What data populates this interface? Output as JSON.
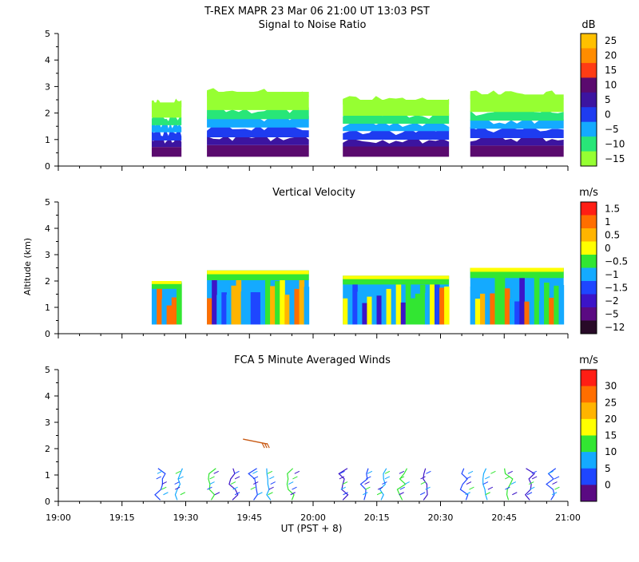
{
  "title": "T-REX   MAPR 23 Mar 06   21:00 UT   13:03   PST",
  "chart_data": [
    {
      "type": "heatmap",
      "title": "Signal to Noise Ratio",
      "unit": "dB",
      "ylim": [
        0,
        5
      ],
      "y_ticks": [
        "0",
        "1",
        "2",
        "3",
        "4",
        "5"
      ],
      "x_ticks": [
        "19:00",
        "19:15",
        "19:30",
        "19:45",
        "20:00",
        "20:15",
        "20:30",
        "20:45",
        "21:00"
      ],
      "colorbar": {
        "labels": [
          "25",
          "20",
          "15",
          "10",
          "5",
          "0",
          "−5",
          "−10",
          "−15"
        ],
        "colors": [
          "#ffc000",
          "#ff8c00",
          "#ff3c14",
          "#5a0a6e",
          "#3c14a0",
          "#1e3cf0",
          "#14aaff",
          "#28e678",
          "#96ff32"
        ]
      },
      "segments": [
        {
          "start": "19:22",
          "end": "19:29",
          "top_km": 2.4
        },
        {
          "start": "19:35",
          "end": "19:59",
          "top_km": 2.8
        },
        {
          "start": "20:07",
          "end": "20:32",
          "top_km": 2.5
        },
        {
          "start": "20:37",
          "end": "20:59",
          "top_km": 2.7
        }
      ]
    },
    {
      "type": "heatmap",
      "title": "Vertical Velocity",
      "unit": "m/s",
      "ylabel": "Altitude  (km)",
      "ylim": [
        0,
        5
      ],
      "y_ticks": [
        "0",
        "1",
        "2",
        "3",
        "4",
        "5"
      ],
      "x_ticks": [
        "19:00",
        "19:15",
        "19:30",
        "19:45",
        "20:00",
        "20:15",
        "20:30",
        "20:45",
        "21:00"
      ],
      "colorbar": {
        "labels": [
          "1.5",
          "1",
          "0.5",
          "0",
          "−0.5",
          "−1",
          "−1.5",
          "−2",
          "−5",
          "−12"
        ],
        "colors": [
          "#ff1e14",
          "#ff6e00",
          "#ffb400",
          "#ffff00",
          "#32e632",
          "#14aaff",
          "#1e46ff",
          "#3c14c8",
          "#5a0a82",
          "#280a28"
        ]
      },
      "segments": [
        {
          "start": "19:22",
          "end": "19:29",
          "top_km": 2.0
        },
        {
          "start": "19:35",
          "end": "19:59",
          "top_km": 2.4
        },
        {
          "start": "20:07",
          "end": "20:32",
          "top_km": 2.2
        },
        {
          "start": "20:37",
          "end": "20:59",
          "top_km": 2.5
        }
      ]
    },
    {
      "type": "scatter",
      "title": "FCA 5 Minute Averaged Winds",
      "unit": "m/s",
      "xlabel": "UT  (PST + 8)",
      "ylim": [
        0,
        5
      ],
      "y_ticks": [
        "0",
        "1",
        "2",
        "3",
        "4",
        "5"
      ],
      "x_ticks": [
        "19:00",
        "19:15",
        "19:30",
        "19:45",
        "20:00",
        "20:15",
        "20:30",
        "20:45",
        "21:00"
      ],
      "colorbar": {
        "labels": [
          "30",
          "25",
          "20",
          "15",
          "10",
          "5",
          "0"
        ],
        "colors": [
          "#ff1e14",
          "#ff6e00",
          "#ffb400",
          "#ffff00",
          "#32e632",
          "#14aaff",
          "#1e46ff",
          "#5a0a82"
        ]
      },
      "barb_columns": [
        "19:24",
        "19:28",
        "19:36",
        "19:41",
        "19:46",
        "19:50",
        "19:55",
        "20:07",
        "20:12",
        "20:16",
        "20:21",
        "20:26",
        "20:36",
        "20:41",
        "20:46",
        "20:51",
        "20:56"
      ],
      "elevated_barb": {
        "time": "19:48",
        "alt_km": 2.3,
        "speed_ms": 24
      }
    }
  ]
}
